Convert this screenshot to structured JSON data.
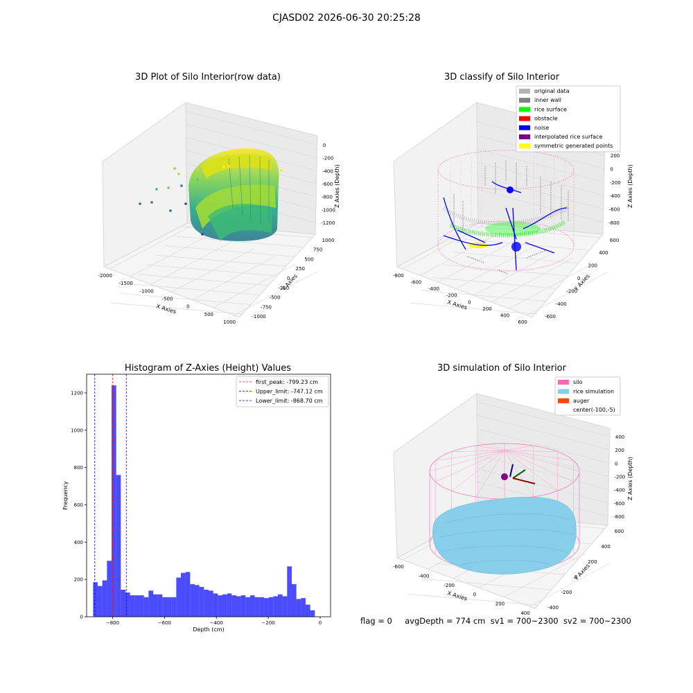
{
  "suptitle": "CJASD02 2026-06-30 20:25:28",
  "panels": {
    "raw": {
      "title": "3D Plot of Silo Interior(row data)",
      "x_label": "X Axies",
      "y_label": "Y Axies",
      "z_label": "Z Axies (Depth)",
      "x_ticks": [
        "-2000",
        "-1500",
        "-1000",
        "-500",
        "0",
        "500",
        "1000"
      ],
      "y_ticks": [
        "-1000",
        "-750",
        "-500",
        "-250",
        "0",
        "250",
        "500",
        "750",
        "1000"
      ],
      "z_ticks": [
        "0",
        "-200",
        "-400",
        "-600",
        "-800",
        "-1000",
        "-1200"
      ]
    },
    "classify": {
      "title": "3D classify of Silo Interior",
      "x_label": "X Axies",
      "y_label": "Y Axies",
      "z_label": "Z Axies (Depth)",
      "x_ticks": [
        "-800",
        "-600",
        "-400",
        "-200",
        "0",
        "200",
        "400",
        "600"
      ],
      "y_ticks": [
        "-600",
        "-400",
        "-200",
        "0",
        "200",
        "400",
        "600"
      ],
      "z_ticks": [
        "200",
        "0",
        "-200",
        "-400",
        "-600",
        "-800"
      ],
      "legend": [
        {
          "label": "original data",
          "color": "#b3b3b3"
        },
        {
          "label": "inner wall",
          "color": "#808080"
        },
        {
          "label": "rice surface",
          "color": "#00ff00"
        },
        {
          "label": "obstacle",
          "color": "#ff0000"
        },
        {
          "label": "noise",
          "color": "#0000ff"
        },
        {
          "label": "interpolated rice surface",
          "color": "#800080"
        },
        {
          "label": "symmetric generated points",
          "color": "#ffff00"
        }
      ]
    },
    "histogram": {
      "title": "Histogram of Z-Axies (Height) Values",
      "x_label": "Depth (cm)",
      "y_label": "Frequency"
    },
    "simulation": {
      "title": "3D simulation of Silo Interior",
      "x_label": "X Axies",
      "y_label": "Y Axies",
      "z_label": "Z Axies (Depth)",
      "x_ticks": [
        "-600",
        "-400",
        "-200",
        "0",
        "200",
        "400"
      ],
      "y_ticks": [
        "-400",
        "-200",
        "0",
        "200",
        "400",
        "600"
      ],
      "z_ticks": [
        "400",
        "200",
        "0",
        "-200",
        "-400",
        "-600",
        "-800"
      ],
      "legend": [
        {
          "label": "silo",
          "color": "#ff69b4"
        },
        {
          "label": "rice simulation",
          "color": "#87ceeb"
        },
        {
          "label": "auger",
          "color": "#ff4500"
        },
        {
          "label": "center(-100,-5)",
          "color": ""
        }
      ]
    }
  },
  "footer": "flag = 0     avgDepth = 774 cm  sv1 = 700~2300  sv2 = 700~2300",
  "chart_data": {
    "type": "bar",
    "title": "Histogram of Z-Axies (Height) Values",
    "xlabel": "Depth (cm)",
    "ylabel": "Frequency",
    "xlim": [
      -900,
      40
    ],
    "ylim": [
      0,
      1300
    ],
    "x_ticks": [
      -800,
      -600,
      -400,
      -200,
      0
    ],
    "y_ticks": [
      0,
      200,
      400,
      600,
      800,
      1000,
      1200
    ],
    "bar_color": "#0000ff",
    "bin_start": -875,
    "bin_width": 17.8,
    "values": [
      185,
      165,
      195,
      300,
      1240,
      760,
      145,
      130,
      115,
      115,
      115,
      105,
      140,
      120,
      120,
      105,
      105,
      105,
      210,
      235,
      240,
      175,
      170,
      160,
      145,
      140,
      125,
      115,
      120,
      125,
      115,
      110,
      115,
      105,
      115,
      105,
      105,
      100,
      105,
      110,
      120,
      110,
      270,
      175,
      95,
      100,
      65,
      35
    ],
    "lines": [
      {
        "label": "first_peak: -799.23 cm",
        "x": -799.23,
        "color": "#ff0000"
      },
      {
        "label": "Upper_limit: -747.12 cm",
        "x": -747.12,
        "color": "#0000ff"
      },
      {
        "label": "Lower_limit: -868.70 cm",
        "x": -868.7,
        "color": "#0000ff"
      }
    ],
    "legend_position": "top-right"
  }
}
